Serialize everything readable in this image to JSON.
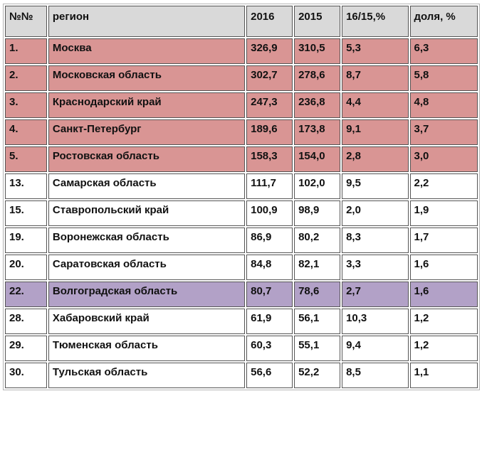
{
  "header": {
    "num": "№№",
    "region": "регион",
    "y2016": "2016",
    "y2015": "2015",
    "change": "16/15,%",
    "share": "доля, %"
  },
  "rows": [
    {
      "num": "1.",
      "region": "Москва",
      "y2016": "326,9",
      "y2015": "310,5",
      "change": "5,3",
      "share": "6,3"
    },
    {
      "num": "2.",
      "region": "Московская область",
      "y2016": "302,7",
      "y2015": "278,6",
      "change": "8,7",
      "share": "5,8"
    },
    {
      "num": "3.",
      "region": "Краснодарский край",
      "y2016": "247,3",
      "y2015": "236,8",
      "change": "4,4",
      "share": "4,8"
    },
    {
      "num": "4.",
      "region": "Санкт-Петербург",
      "y2016": "189,6",
      "y2015": "173,8",
      "change": "9,1",
      "share": "3,7"
    },
    {
      "num": "5.",
      "region": "Ростовская область",
      "y2016": "158,3",
      "y2015": "154,0",
      "change": "2,8",
      "share": "3,0"
    },
    {
      "num": "13.",
      "region": "Самарская область",
      "y2016": "111,7",
      "y2015": "102,0",
      "change": "9,5",
      "share": "2,2"
    },
    {
      "num": "15.",
      "region": "Ставропольский край",
      "y2016": "100,9",
      "y2015": "98,9",
      "change": "2,0",
      "share": "1,9"
    },
    {
      "num": "19.",
      "region": "Воронежская область",
      "y2016": "86,9",
      "y2015": "80,2",
      "change": "8,3",
      "share": "1,7"
    },
    {
      "num": "20.",
      "region": "Саратовская область",
      "y2016": "84,8",
      "y2015": "82,1",
      "change": "3,3",
      "share": "1,6"
    },
    {
      "num": "22.",
      "region": "Волгоградская область",
      "y2016": "80,7",
      "y2015": "78,6",
      "change": "2,7",
      "share": "1,6"
    },
    {
      "num": "28.",
      "region": "Хабаровский край",
      "y2016": "61,9",
      "y2015": "56,1",
      "change": "10,3",
      "share": "1,2"
    },
    {
      "num": "29.",
      "region": "Тюменская область",
      "y2016": "60,3",
      "y2015": "55,1",
      "change": "9,4",
      "share": "1,2"
    },
    {
      "num": "30.",
      "region": "Тульская область",
      "y2016": "56,6",
      "y2015": "52,2",
      "change": "8,5",
      "share": "1,1"
    }
  ],
  "colors": {
    "header_bg": "#d9d9d9",
    "top_rows_bg": "#d99594",
    "highlight_row_bg": "#b2a1c7",
    "plain_row_bg": "#ffffff"
  }
}
